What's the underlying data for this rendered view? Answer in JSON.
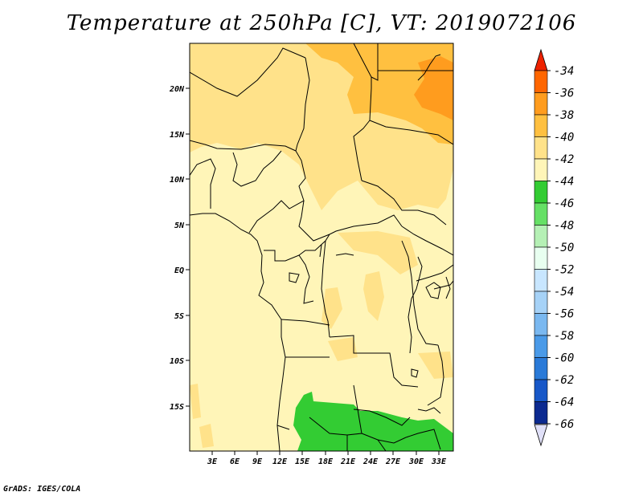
{
  "title": "Temperature at 250hPa [C], VT: 2019072106",
  "footer": "GrADS: IGES/COLA",
  "colors": {
    "bg_light": "#fff5b8",
    "band_40_42": "#ffe28a",
    "band_38_40": "#ffc040",
    "band_36_38": "#ff9c1e",
    "band_46_44": "#33cc33",
    "coast": "#000000"
  },
  "map": {
    "lat_labels": [
      "20N",
      "15N",
      "10N",
      "5N",
      "EQ",
      "5S",
      "10S",
      "15S"
    ],
    "lon_labels": [
      "3E",
      "6E",
      "9E",
      "12E",
      "15E",
      "18E",
      "21E",
      "24E",
      "27E",
      "30E",
      "33E"
    ]
  },
  "colorbar": {
    "labels": [
      "-34",
      "-36",
      "-38",
      "-40",
      "-42",
      "-44",
      "-46",
      "-48",
      "-50",
      "-52",
      "-54",
      "-56",
      "-58",
      "-60",
      "-62",
      "-64",
      "-66"
    ],
    "colors_top_to_bottom": [
      "#ff6600",
      "#ff9c1e",
      "#ffc040",
      "#ffe28a",
      "#fff5b8",
      "#33cc33",
      "#66e066",
      "#b5f0b5",
      "#e8fff0",
      "#c8e6ff",
      "#a6d2f7",
      "#7ab8f0",
      "#4a9ae8",
      "#2a7ad8",
      "#1858c8",
      "#0c2a90"
    ],
    "top_arrow_color": "#ee2200",
    "bottom_arrow_color": "#e0e0f8"
  }
}
